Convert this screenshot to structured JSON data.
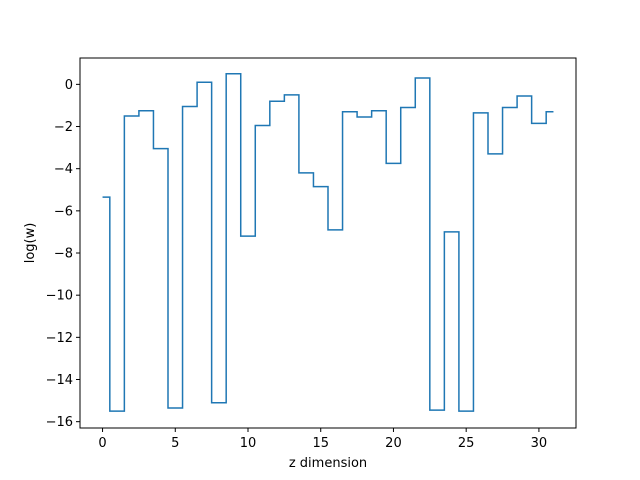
{
  "chart_data": {
    "type": "line",
    "drawstyle": "steps-mid",
    "title": "",
    "xlabel": "z dimension",
    "ylabel": "log(w)",
    "xlim": [
      -1.55,
      32.55
    ],
    "ylim": [
      -16.3,
      1.25
    ],
    "grid": false,
    "legend": "none",
    "line_color": "#1f77b4",
    "xticks": [
      0,
      5,
      10,
      15,
      20,
      25,
      30
    ],
    "yticks": [
      -16,
      -14,
      -12,
      -10,
      -8,
      -6,
      -4,
      -2,
      0
    ],
    "x": [
      0,
      1,
      2,
      3,
      4,
      5,
      6,
      7,
      8,
      9,
      10,
      11,
      12,
      13,
      14,
      15,
      16,
      17,
      18,
      19,
      20,
      21,
      22,
      23,
      24,
      25,
      26,
      27,
      28,
      29,
      30,
      31
    ],
    "series": [
      {
        "values": [
          -5.35,
          -15.5,
          -1.5,
          -1.25,
          -3.05,
          -15.35,
          -1.05,
          0.1,
          -15.1,
          0.5,
          -7.2,
          -1.95,
          -0.8,
          -0.5,
          -4.2,
          -4.85,
          -6.9,
          -1.3,
          -1.55,
          -1.25,
          -3.75,
          -1.1,
          0.3,
          -15.45,
          -7.0,
          -15.5,
          -1.35,
          -3.3,
          -1.1,
          -0.55,
          -1.85,
          -1.3
        ]
      }
    ]
  }
}
